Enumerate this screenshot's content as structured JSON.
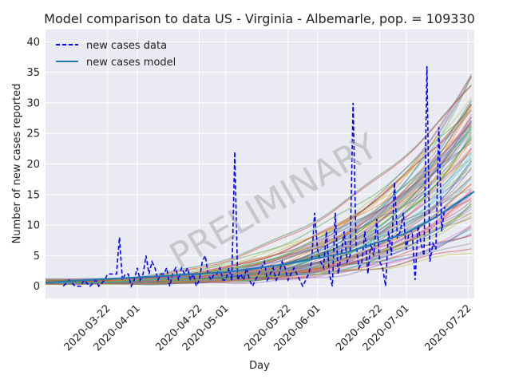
{
  "chart_data": {
    "type": "line",
    "title": "Model comparison to data US - Virginia - Albemarle, pop. = 109330",
    "xlabel": "Day",
    "ylabel": "Number of new cases reported",
    "watermark": "PRELIMINARY",
    "x_range": [
      "2020-03-01",
      "2020-07-24"
    ],
    "ylim": [
      -2,
      42
    ],
    "yticks": [
      0,
      5,
      10,
      15,
      20,
      25,
      30,
      35,
      40
    ],
    "xticks": [
      "2020-03-22",
      "2020-04-01",
      "2020-04-22",
      "2020-05-01",
      "2020-05-22",
      "2020-06-01",
      "2020-06-22",
      "2020-07-01",
      "2020-07-22"
    ],
    "grid": true,
    "legend_position": "top-left",
    "legend": [
      {
        "label": "new cases data",
        "style": "dashed",
        "color": "#0000ff"
      },
      {
        "label": "new cases model",
        "style": "solid",
        "color": "#1f77b4"
      }
    ],
    "series": [
      {
        "name": "new cases data",
        "color": "#0000ff",
        "points": [
          [
            "2020-03-07",
            0
          ],
          [
            "2020-03-09",
            1
          ],
          [
            "2020-03-11",
            0
          ],
          [
            "2020-03-13",
            0
          ],
          [
            "2020-03-14",
            1
          ],
          [
            "2020-03-16",
            0
          ],
          [
            "2020-03-18",
            1
          ],
          [
            "2020-03-19",
            0
          ],
          [
            "2020-03-21",
            1
          ],
          [
            "2020-03-22",
            2
          ],
          [
            "2020-03-24",
            2
          ],
          [
            "2020-03-25",
            2
          ],
          [
            "2020-03-26",
            8
          ],
          [
            "2020-03-27",
            1
          ],
          [
            "2020-03-28",
            2
          ],
          [
            "2020-03-29",
            2
          ],
          [
            "2020-03-30",
            0
          ],
          [
            "2020-03-31",
            1
          ],
          [
            "2020-04-01",
            3
          ],
          [
            "2020-04-02",
            1
          ],
          [
            "2020-04-03",
            2
          ],
          [
            "2020-04-04",
            5
          ],
          [
            "2020-04-05",
            2
          ],
          [
            "2020-04-06",
            4
          ],
          [
            "2020-04-07",
            3
          ],
          [
            "2020-04-08",
            1
          ],
          [
            "2020-04-09",
            2
          ],
          [
            "2020-04-10",
            2
          ],
          [
            "2020-04-11",
            3
          ],
          [
            "2020-04-12",
            0
          ],
          [
            "2020-04-13",
            2
          ],
          [
            "2020-04-14",
            3
          ],
          [
            "2020-04-15",
            1
          ],
          [
            "2020-04-16",
            3
          ],
          [
            "2020-04-17",
            2
          ],
          [
            "2020-04-18",
            3
          ],
          [
            "2020-04-19",
            1
          ],
          [
            "2020-04-20",
            2
          ],
          [
            "2020-04-21",
            0
          ],
          [
            "2020-04-22",
            1
          ],
          [
            "2020-04-23",
            4
          ],
          [
            "2020-04-24",
            5
          ],
          [
            "2020-04-25",
            2
          ],
          [
            "2020-04-26",
            1
          ],
          [
            "2020-04-27",
            2
          ],
          [
            "2020-04-28",
            2
          ],
          [
            "2020-04-29",
            3
          ],
          [
            "2020-04-30",
            1
          ],
          [
            "2020-05-01",
            1
          ],
          [
            "2020-05-02",
            3
          ],
          [
            "2020-05-03",
            1
          ],
          [
            "2020-05-04",
            22
          ],
          [
            "2020-05-05",
            1
          ],
          [
            "2020-05-06",
            2
          ],
          [
            "2020-05-07",
            1
          ],
          [
            "2020-05-08",
            3
          ],
          [
            "2020-05-09",
            1
          ],
          [
            "2020-05-10",
            0
          ],
          [
            "2020-05-11",
            1
          ],
          [
            "2020-05-12",
            2
          ],
          [
            "2020-05-13",
            3
          ],
          [
            "2020-05-14",
            4
          ],
          [
            "2020-05-15",
            1
          ],
          [
            "2020-05-16",
            2
          ],
          [
            "2020-05-17",
            3
          ],
          [
            "2020-05-18",
            1
          ],
          [
            "2020-05-19",
            2
          ],
          [
            "2020-05-20",
            4
          ],
          [
            "2020-05-21",
            3
          ],
          [
            "2020-05-22",
            1
          ],
          [
            "2020-05-23",
            2
          ],
          [
            "2020-05-24",
            3
          ],
          [
            "2020-05-25",
            2
          ],
          [
            "2020-05-26",
            1
          ],
          [
            "2020-05-27",
            0
          ],
          [
            "2020-05-28",
            1
          ],
          [
            "2020-05-29",
            2
          ],
          [
            "2020-05-30",
            4
          ],
          [
            "2020-05-31",
            12
          ],
          [
            "2020-06-01",
            6
          ],
          [
            "2020-06-02",
            4
          ],
          [
            "2020-06-03",
            3
          ],
          [
            "2020-06-04",
            9
          ],
          [
            "2020-06-05",
            2
          ],
          [
            "2020-06-06",
            0
          ],
          [
            "2020-06-07",
            12
          ],
          [
            "2020-06-08",
            2
          ],
          [
            "2020-06-09",
            5
          ],
          [
            "2020-06-10",
            9
          ],
          [
            "2020-06-11",
            4
          ],
          [
            "2020-06-12",
            5
          ],
          [
            "2020-06-13",
            30
          ],
          [
            "2020-06-14",
            7
          ],
          [
            "2020-06-15",
            3
          ],
          [
            "2020-06-16",
            4
          ],
          [
            "2020-06-17",
            9
          ],
          [
            "2020-06-18",
            2
          ],
          [
            "2020-06-19",
            7
          ],
          [
            "2020-06-20",
            5
          ],
          [
            "2020-06-21",
            11
          ],
          [
            "2020-06-22",
            4
          ],
          [
            "2020-06-23",
            3
          ],
          [
            "2020-06-24",
            0
          ],
          [
            "2020-06-25",
            9
          ],
          [
            "2020-06-26",
            5
          ],
          [
            "2020-06-27",
            17
          ],
          [
            "2020-06-28",
            8
          ],
          [
            "2020-06-29",
            9
          ],
          [
            "2020-06-30",
            12
          ],
          [
            "2020-07-01",
            6
          ],
          [
            "2020-07-02",
            9
          ],
          [
            "2020-07-03",
            9
          ],
          [
            "2020-07-04",
            1
          ],
          [
            "2020-07-05",
            10
          ],
          [
            "2020-07-06",
            7
          ],
          [
            "2020-07-07",
            5
          ],
          [
            "2020-07-08",
            36
          ],
          [
            "2020-07-09",
            4
          ],
          [
            "2020-07-10",
            7
          ],
          [
            "2020-07-11",
            6
          ],
          [
            "2020-07-12",
            26
          ],
          [
            "2020-07-13",
            9
          ],
          [
            "2020-07-14",
            13
          ]
        ]
      },
      {
        "name": "new cases model",
        "color": "#1f77b4",
        "points": [
          [
            "2020-03-01",
            0.6
          ],
          [
            "2020-03-22",
            1.2
          ],
          [
            "2020-04-11",
            1.7
          ],
          [
            "2020-05-01",
            2.3
          ],
          [
            "2020-05-21",
            3.6
          ],
          [
            "2020-06-10",
            5.4
          ],
          [
            "2020-06-30",
            8.5
          ],
          [
            "2020-07-10",
            11.0
          ],
          [
            "2020-07-24",
            15.5
          ]
        ]
      }
    ]
  }
}
